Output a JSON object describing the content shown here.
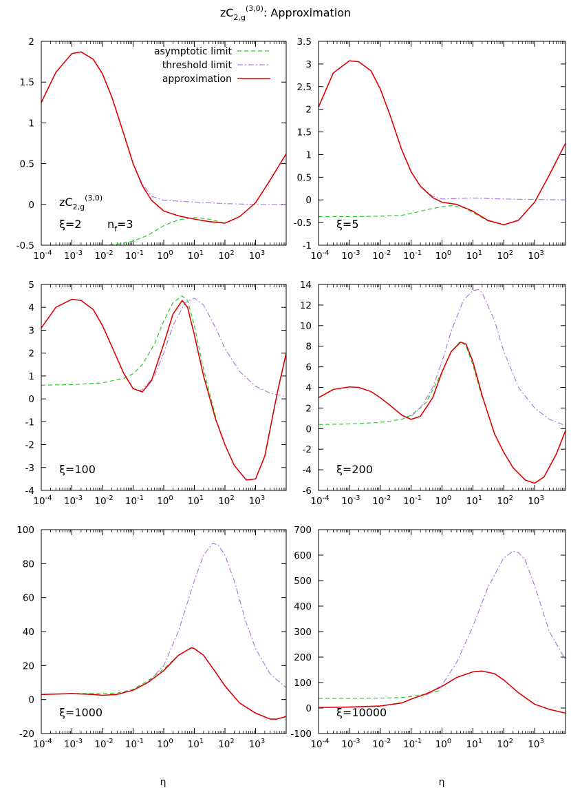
{
  "figure": {
    "title_main": "zC",
    "title_sub": "2,g",
    "title_sup": "(3,0)",
    "title_rest": ": Approximation",
    "xlabel": "η"
  },
  "legend": {
    "items": [
      {
        "label": "asymptotic limit",
        "color": "#22cc22",
        "style": "dashed"
      },
      {
        "label": "threshold limit",
        "color": "#b07ae0",
        "style": "dashdot"
      },
      {
        "label": "approximation",
        "color": "#dd0000",
        "style": "solid"
      }
    ]
  },
  "chart_data": [
    {
      "type": "line",
      "panel": "xi-2",
      "annotation": "ξ=2",
      "annotation2": "n",
      "annotation2_sub": "f",
      "annotation2_rest": "=3",
      "annotation_formula": {
        "main": "zC",
        "sub": "2,g",
        "sup": "(3,0)"
      },
      "xscale": "log",
      "xlim": [
        0.0001,
        10000
      ],
      "ylim": [
        -0.5,
        2
      ],
      "yticks": [
        -0.5,
        0,
        0.5,
        1,
        1.5,
        2
      ],
      "ytick_labels": [
        "-0.5",
        "0",
        "0.5",
        "1",
        "1.5",
        "2"
      ],
      "series": [
        {
          "id": "asymptotic",
          "x": [
            0.01,
            0.03,
            0.1,
            0.3,
            1,
            3,
            10,
            30,
            100
          ],
          "y": [
            -0.5,
            -0.49,
            -0.45,
            -0.38,
            -0.26,
            -0.19,
            -0.16,
            -0.18,
            -0.23
          ]
        },
        {
          "id": "threshold",
          "x": [
            0.0001,
            0.0003,
            0.001,
            0.002,
            0.005,
            0.01,
            0.02,
            0.05,
            0.1,
            0.2,
            0.4,
            1,
            3,
            10,
            30,
            100,
            300,
            1000,
            3000,
            10000
          ],
          "y": [
            1.25,
            1.62,
            1.85,
            1.87,
            1.78,
            1.6,
            1.32,
            0.86,
            0.5,
            0.25,
            0.1,
            0.05,
            0.04,
            0.03,
            0.02,
            0.01,
            0.005,
            0.0,
            0.0,
            0.0
          ]
        },
        {
          "id": "approximation",
          "x": [
            0.0001,
            0.0003,
            0.001,
            0.002,
            0.005,
            0.01,
            0.02,
            0.05,
            0.1,
            0.2,
            0.4,
            1,
            3,
            10,
            30,
            100,
            300,
            1000,
            3000,
            10000
          ],
          "y": [
            1.25,
            1.62,
            1.85,
            1.87,
            1.78,
            1.6,
            1.32,
            0.86,
            0.5,
            0.23,
            0.05,
            -0.08,
            -0.14,
            -0.18,
            -0.21,
            -0.23,
            -0.15,
            0.02,
            0.3,
            0.62
          ]
        }
      ]
    },
    {
      "type": "line",
      "panel": "xi-5",
      "annotation": "ξ=5",
      "xscale": "log",
      "xlim": [
        0.0001,
        10000
      ],
      "ylim": [
        -1,
        3.5
      ],
      "yticks": [
        -1,
        -0.5,
        0,
        0.5,
        1,
        1.5,
        2,
        2.5,
        3,
        3.5
      ],
      "ytick_labels": [
        "-1",
        "-0.5",
        "0",
        "0.5",
        "1",
        "1.5",
        "2",
        "2.5",
        "3",
        "3.5"
      ],
      "series": [
        {
          "id": "asymptotic",
          "x": [
            0.0001,
            0.001,
            0.01,
            0.05,
            0.1,
            0.3,
            1,
            2,
            5,
            10,
            30,
            100
          ],
          "y": [
            -0.37,
            -0.37,
            -0.36,
            -0.34,
            -0.3,
            -0.22,
            -0.15,
            -0.13,
            -0.17,
            -0.28,
            -0.46,
            -0.55
          ]
        },
        {
          "id": "threshold",
          "x": [
            0.0001,
            0.0003,
            0.001,
            0.002,
            0.005,
            0.01,
            0.02,
            0.05,
            0.1,
            0.2,
            0.5,
            1,
            3,
            10,
            30,
            100,
            1000,
            10000
          ],
          "y": [
            2.05,
            2.8,
            3.07,
            3.05,
            2.85,
            2.45,
            1.9,
            1.1,
            0.62,
            0.3,
            0.08,
            0.02,
            0.03,
            0.04,
            0.03,
            0.02,
            0.01,
            0.0
          ]
        },
        {
          "id": "approximation",
          "x": [
            0.0001,
            0.0003,
            0.001,
            0.002,
            0.005,
            0.01,
            0.02,
            0.05,
            0.1,
            0.2,
            0.5,
            1,
            3,
            10,
            30,
            100,
            300,
            1000,
            3000,
            10000
          ],
          "y": [
            2.05,
            2.8,
            3.07,
            3.05,
            2.85,
            2.45,
            1.9,
            1.1,
            0.62,
            0.3,
            0.05,
            -0.05,
            -0.1,
            -0.25,
            -0.45,
            -0.55,
            -0.45,
            -0.05,
            0.55,
            1.25
          ]
        }
      ]
    },
    {
      "type": "line",
      "panel": "xi-100",
      "annotation": "ξ=100",
      "xscale": "log",
      "xlim": [
        0.0001,
        10000
      ],
      "ylim": [
        -4,
        5
      ],
      "yticks": [
        -4,
        -3,
        -2,
        -1,
        0,
        1,
        2,
        3,
        4,
        5
      ],
      "ytick_labels": [
        "-4",
        "-3",
        "-2",
        "-1",
        "0",
        "1",
        "2",
        "3",
        "4",
        "5"
      ],
      "series": [
        {
          "id": "asymptotic",
          "x": [
            0.0001,
            0.001,
            0.01,
            0.05,
            0.1,
            0.2,
            0.5,
            1,
            2,
            4,
            6,
            10,
            20,
            50
          ],
          "y": [
            0.6,
            0.62,
            0.7,
            0.9,
            1.1,
            1.5,
            2.4,
            3.4,
            4.2,
            4.5,
            4.3,
            3.2,
            1.3,
            -0.8
          ]
        },
        {
          "id": "threshold",
          "x": [
            0.15,
            0.2,
            0.5,
            1,
            2,
            5,
            10,
            20,
            50,
            100,
            300,
            1000,
            3000,
            10000
          ],
          "y": [
            0.35,
            0.4,
            1.0,
            2.0,
            3.2,
            4.2,
            4.4,
            4.1,
            3.1,
            2.2,
            1.2,
            0.55,
            0.25,
            0.1
          ]
        },
        {
          "id": "approximation",
          "x": [
            0.0001,
            0.0003,
            0.001,
            0.002,
            0.005,
            0.01,
            0.02,
            0.05,
            0.1,
            0.2,
            0.4,
            1,
            2,
            4,
            6,
            10,
            20,
            50,
            100,
            200,
            500,
            1000,
            2000,
            5000,
            10000
          ],
          "y": [
            3.1,
            4.0,
            4.35,
            4.3,
            3.9,
            3.2,
            2.3,
            1.1,
            0.45,
            0.3,
            0.8,
            2.4,
            3.7,
            4.3,
            4.0,
            2.8,
            1.0,
            -0.9,
            -2.0,
            -2.9,
            -3.55,
            -3.5,
            -2.5,
            0.2,
            2.0
          ]
        }
      ]
    },
    {
      "type": "line",
      "panel": "xi-200",
      "annotation": "ξ=200",
      "xscale": "log",
      "xlim": [
        0.0001,
        10000
      ],
      "ylim": [
        -6,
        14
      ],
      "yticks": [
        -6,
        -4,
        -2,
        0,
        2,
        4,
        6,
        8,
        10,
        12,
        14
      ],
      "ytick_labels": [
        "-6",
        "-4",
        "-2",
        "0",
        "2",
        "4",
        "6",
        "8",
        "10",
        "12",
        "14"
      ],
      "series": [
        {
          "id": "asymptotic",
          "x": [
            0.0001,
            0.001,
            0.01,
            0.05,
            0.1,
            0.3,
            1,
            2,
            4,
            6,
            10,
            20
          ],
          "y": [
            0.4,
            0.45,
            0.6,
            0.9,
            1.3,
            2.5,
            5.5,
            7.5,
            8.5,
            8.0,
            6.2,
            3.0
          ]
        },
        {
          "id": "threshold",
          "x": [
            0.1,
            0.2,
            0.5,
            1,
            2,
            5,
            10,
            15,
            20,
            50,
            100,
            300,
            1000,
            3000,
            10000
          ],
          "y": [
            1.2,
            2.0,
            4.0,
            6.5,
            9.5,
            12.5,
            13.4,
            13.5,
            13.2,
            10.5,
            7.5,
            4.0,
            2.0,
            0.9,
            0.3
          ]
        },
        {
          "id": "approximation",
          "x": [
            0.0001,
            0.0003,
            0.001,
            0.002,
            0.005,
            0.01,
            0.02,
            0.05,
            0.1,
            0.2,
            0.5,
            1,
            2,
            4,
            6,
            10,
            20,
            50,
            100,
            200,
            500,
            1000,
            2000,
            5000,
            10000
          ],
          "y": [
            3.0,
            3.8,
            4.05,
            4.0,
            3.6,
            3.0,
            2.3,
            1.3,
            0.9,
            1.2,
            3.0,
            5.5,
            7.5,
            8.4,
            8.2,
            6.5,
            3.2,
            -0.5,
            -2.3,
            -3.8,
            -5.0,
            -5.3,
            -4.7,
            -2.5,
            -0.2
          ]
        }
      ]
    },
    {
      "type": "line",
      "panel": "xi-1000",
      "annotation": "ξ=1000",
      "xscale": "log",
      "xlim": [
        0.0001,
        10000
      ],
      "ylim": [
        -20,
        100
      ],
      "yticks": [
        -20,
        0,
        20,
        40,
        60,
        80,
        100
      ],
      "ytick_labels": [
        "-20",
        "0",
        "20",
        "40",
        "60",
        "80",
        "100"
      ],
      "series": [
        {
          "id": "asymptotic",
          "x": [
            0.0001,
            0.001,
            0.01,
            0.03,
            0.1,
            0.3,
            1,
            2,
            3
          ],
          "y": [
            3.0,
            3.5,
            3.5,
            3.8,
            6.0,
            11.0,
            18.0,
            23.0,
            26.0
          ]
        },
        {
          "id": "threshold",
          "x": [
            0.3,
            1,
            3,
            10,
            20,
            40,
            60,
            100,
            200,
            500,
            1000,
            3000,
            10000
          ],
          "y": [
            10.0,
            20.0,
            40.0,
            70.0,
            85.0,
            92.0,
            91.0,
            85.0,
            70.0,
            45.0,
            30.0,
            15.0,
            7.0
          ]
        },
        {
          "id": "approximation",
          "x": [
            0.0001,
            0.001,
            0.005,
            0.01,
            0.03,
            0.1,
            0.3,
            1,
            3,
            8,
            10,
            20,
            50,
            100,
            300,
            1000,
            3000,
            5000,
            10000
          ],
          "y": [
            3.0,
            3.5,
            3.0,
            2.5,
            3.0,
            5.5,
            10.0,
            17.0,
            26.0,
            30.5,
            30.0,
            26.0,
            16.0,
            8.0,
            -2.0,
            -8.0,
            -11.5,
            -11.5,
            -10.0
          ]
        }
      ]
    },
    {
      "type": "line",
      "panel": "xi-10000",
      "annotation": "ξ=10000",
      "xscale": "log",
      "xlim": [
        0.0001,
        10000
      ],
      "ylim": [
        -100,
        700
      ],
      "yticks": [
        -100,
        0,
        100,
        200,
        300,
        400,
        500,
        600,
        700
      ],
      "ytick_labels": [
        "-100",
        "0",
        "100",
        "200",
        "300",
        "400",
        "500",
        "600",
        "700"
      ],
      "series": [
        {
          "id": "asymptotic",
          "x": [
            0.0001,
            0.001,
            0.01,
            0.05,
            0.1,
            0.3,
            1
          ],
          "y": [
            38.0,
            38.0,
            39.0,
            41.0,
            45.0,
            55.0,
            70.0
          ]
        },
        {
          "id": "threshold",
          "x": [
            0.3,
            1,
            3,
            10,
            30,
            100,
            200,
            300,
            500,
            1000,
            3000,
            10000
          ],
          "y": [
            50.0,
            90.0,
            180.0,
            320.0,
            470.0,
            590.0,
            615.0,
            610.0,
            580.0,
            480.0,
            300.0,
            190.0
          ]
        },
        {
          "id": "approximation",
          "x": [
            0.0001,
            0.001,
            0.01,
            0.05,
            0.1,
            0.3,
            1,
            3,
            10,
            20,
            50,
            100,
            300,
            1000,
            3000,
            10000
          ],
          "y": [
            2.0,
            4.0,
            8.0,
            20.0,
            35.0,
            55.0,
            85.0,
            120.0,
            142.0,
            145.0,
            135.0,
            110.0,
            60.0,
            15.0,
            -5.0,
            -20.0
          ]
        }
      ]
    }
  ]
}
